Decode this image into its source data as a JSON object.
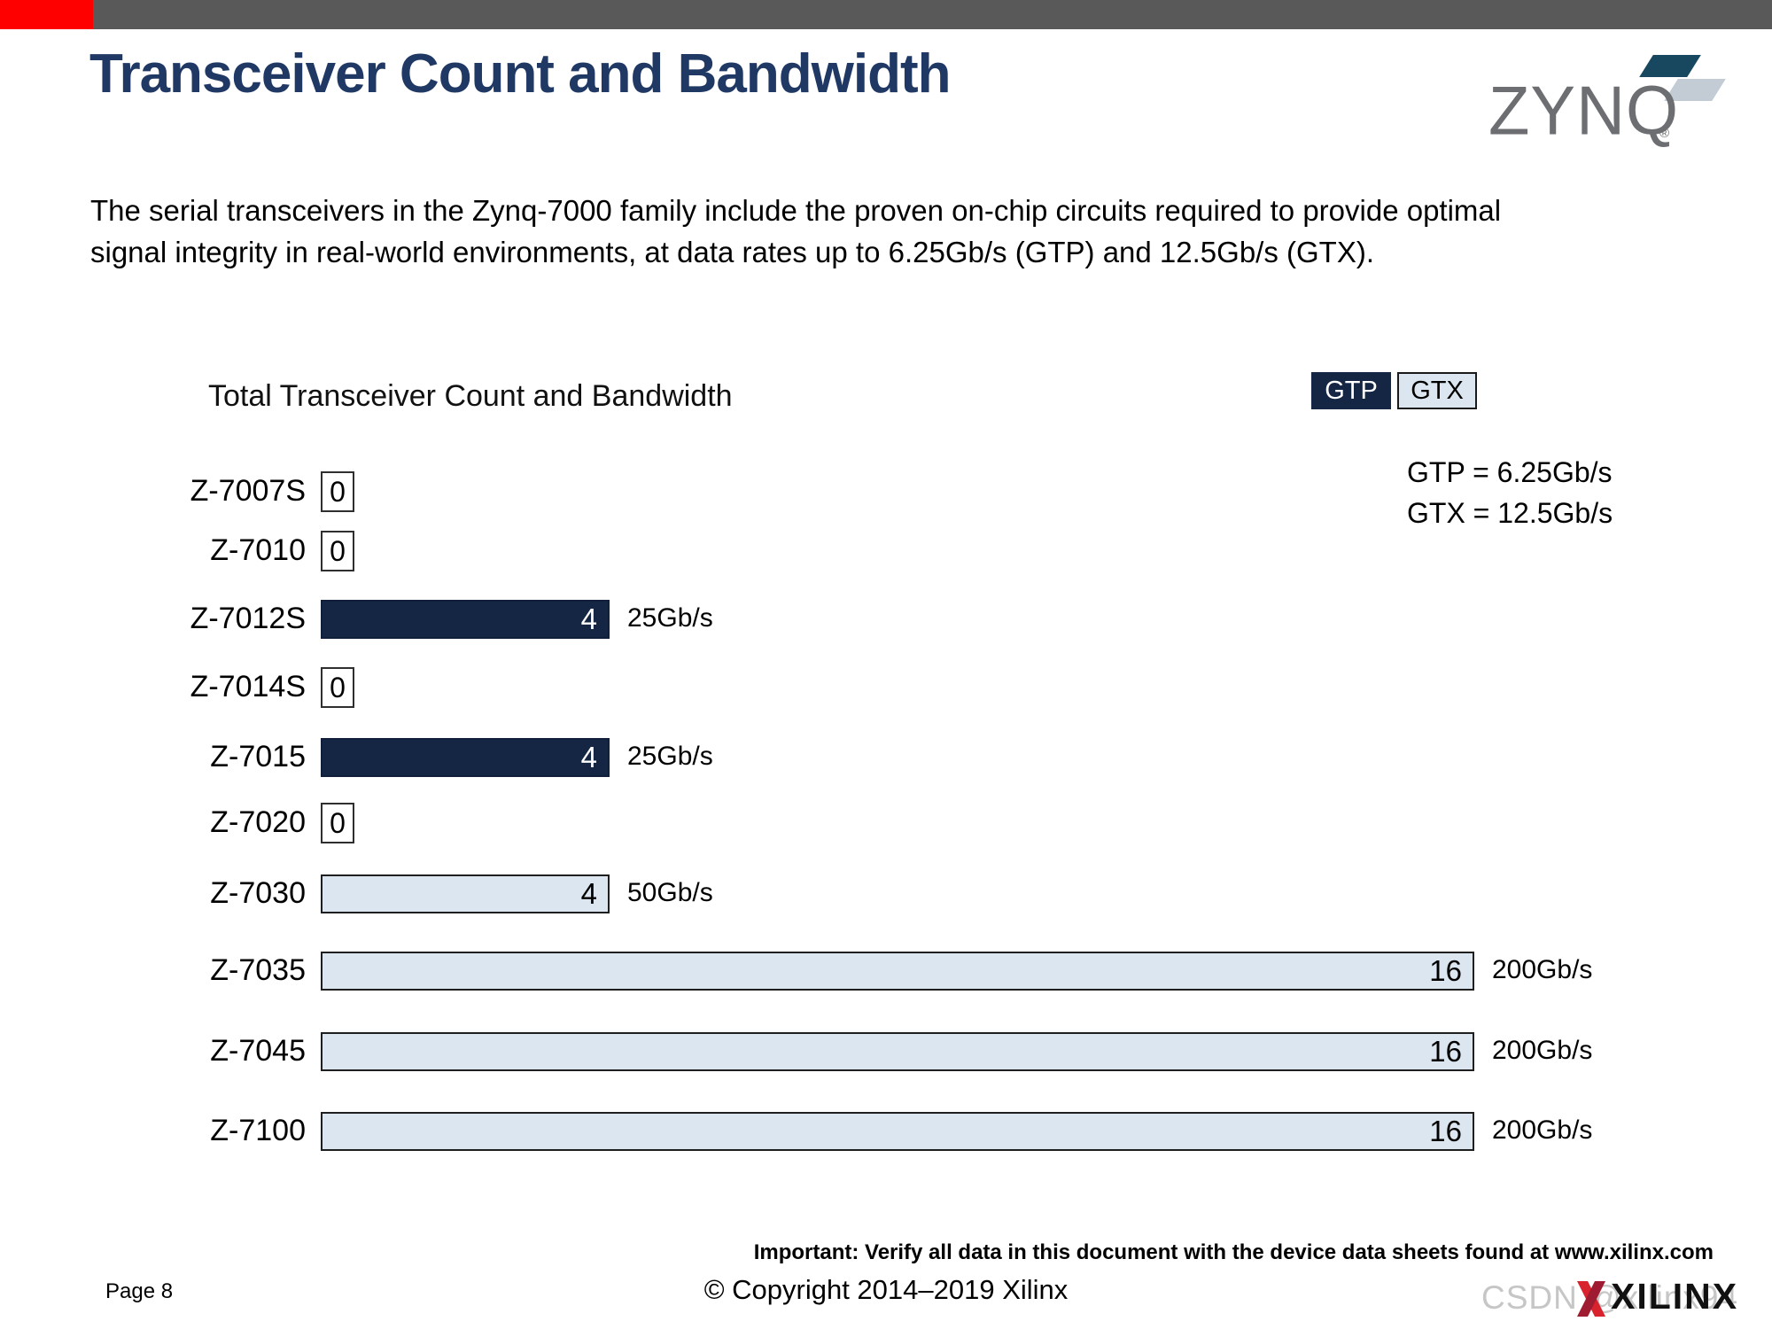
{
  "header": {
    "title": "Transceiver Count and Bandwidth",
    "logo_text": "ZYNQ",
    "logo_reg": "®"
  },
  "intro": {
    "lines": [
      "The serial transceivers in the Zynq-7000 family include the proven on-chip circuits required  to provide optimal",
      "signal integrity in real-world environments, at data rates up to 6.25Gb/s (GTP) and 12.5Gb/s (GTX)."
    ]
  },
  "chart_data": {
    "type": "bar",
    "orientation": "horizontal",
    "title": "Total Transceiver Count and Bandwidth",
    "categories": [
      "Z-7007S",
      "Z-7010",
      "Z-7012S",
      "Z-7014S",
      "Z-7015",
      "Z-7020",
      "Z-7030",
      "Z-7035",
      "Z-7045",
      "Z-7100"
    ],
    "values": [
      0,
      0,
      4,
      0,
      4,
      0,
      4,
      16,
      16,
      16
    ],
    "series_type": [
      "none",
      "none",
      "GTP",
      "none",
      "GTP",
      "none",
      "GTX",
      "GTX",
      "GTX",
      "GTX"
    ],
    "value_labels": [
      "0",
      "0",
      "4",
      "0",
      "4",
      "0",
      "4",
      "16",
      "16",
      "16"
    ],
    "bandwidth_labels": [
      "",
      "",
      "25Gb/s",
      "",
      "25Gb/s",
      "",
      "50Gb/s",
      "200Gb/s",
      "200Gb/s",
      "200Gb/s"
    ],
    "xlim": [
      0,
      16
    ],
    "grid": false,
    "legend": [
      {
        "label": "GTP",
        "color": "#152544"
      },
      {
        "label": "GTX",
        "color": "#dce6f1"
      }
    ],
    "legend_position": "top-right",
    "legend_note": [
      "GTP = 6.25Gb/s",
      "GTX = 12.5Gb/s"
    ]
  },
  "footer": {
    "page": "Page 8",
    "copyright": "© Copyright 2014–2019 Xilinx",
    "important": "Important: Verify all data in this document with the device data sheets found at www.xilinx.com",
    "watermark": "CSDN @xilinx94",
    "brand": "XILINX"
  },
  "colors": {
    "topbar_gray": "#595959",
    "topbar_red": "#fe0000",
    "title_navy": "#1f3864",
    "gtp_bar": "#152544",
    "gtx_bar": "#dce6f1",
    "zynq_gray": "#6d6e71",
    "zynq_teal": "#17485f",
    "zynq_light": "#c3ccd5",
    "xilinx_red": "#d8232e"
  }
}
